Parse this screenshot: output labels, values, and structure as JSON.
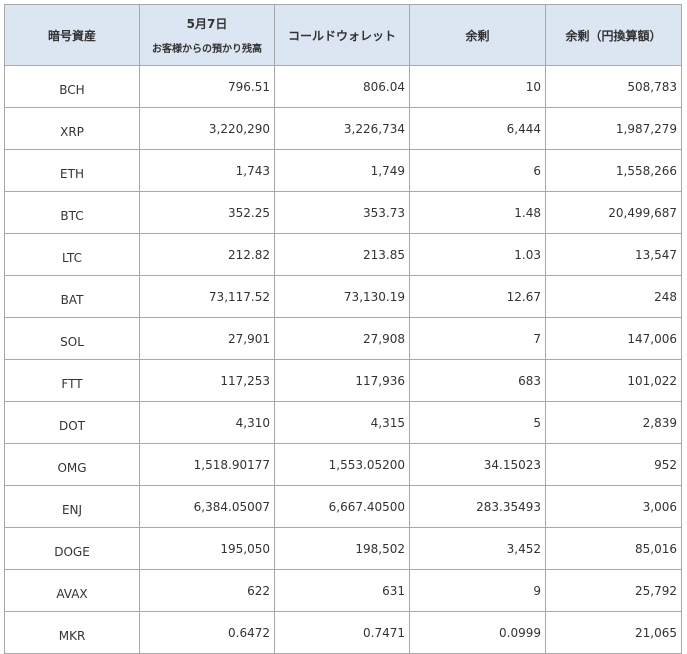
{
  "headers": {
    "symbol": "暗号資産",
    "deposit_date": "5月7日",
    "deposit_sub": "お客様からの預かり残高",
    "cold_wallet": "コールドウォレット",
    "surplus": "余剰",
    "surplus_jpy": "余剰（円換算額）"
  },
  "rows": [
    {
      "symbol": "BCH",
      "deposit": "796.51",
      "cold": "806.04",
      "surplus": "10",
      "jpy": "508,783"
    },
    {
      "symbol": "XRP",
      "deposit": "3,220,290",
      "cold": "3,226,734",
      "surplus": "6,444",
      "jpy": "1,987,279"
    },
    {
      "symbol": "ETH",
      "deposit": "1,743",
      "cold": "1,749",
      "surplus": "6",
      "jpy": "1,558,266"
    },
    {
      "symbol": "BTC",
      "deposit": "352.25",
      "cold": "353.73",
      "surplus": "1.48",
      "jpy": "20,499,687"
    },
    {
      "symbol": "LTC",
      "deposit": "212.82",
      "cold": "213.85",
      "surplus": "1.03",
      "jpy": "13,547"
    },
    {
      "symbol": "BAT",
      "deposit": "73,117.52",
      "cold": "73,130.19",
      "surplus": "12.67",
      "jpy": "248"
    },
    {
      "symbol": "SOL",
      "deposit": "27,901",
      "cold": "27,908",
      "surplus": "7",
      "jpy": "147,006"
    },
    {
      "symbol": "FTT",
      "deposit": "117,253",
      "cold": "117,936",
      "surplus": "683",
      "jpy": "101,022"
    },
    {
      "symbol": "DOT",
      "deposit": "4,310",
      "cold": "4,315",
      "surplus": "5",
      "jpy": "2,839"
    },
    {
      "symbol": "OMG",
      "deposit": "1,518.90177",
      "cold": "1,553.05200",
      "surplus": "34.15023",
      "jpy": "952"
    },
    {
      "symbol": "ENJ",
      "deposit": "6,384.05007",
      "cold": "6,667.40500",
      "surplus": "283.35493",
      "jpy": "3,006"
    },
    {
      "symbol": "DOGE",
      "deposit": "195,050",
      "cold": "198,502",
      "surplus": "3,452",
      "jpy": "85,016"
    },
    {
      "symbol": "AVAX",
      "deposit": "622",
      "cold": "631",
      "surplus": "9",
      "jpy": "25,792"
    },
    {
      "symbol": "MKR",
      "deposit": "0.6472",
      "cold": "0.7471",
      "surplus": "0.0999",
      "jpy": "21,065"
    }
  ],
  "colors": {
    "header_bg": "#dce6f2",
    "border": "#a8a8a8",
    "text": "#333333"
  }
}
